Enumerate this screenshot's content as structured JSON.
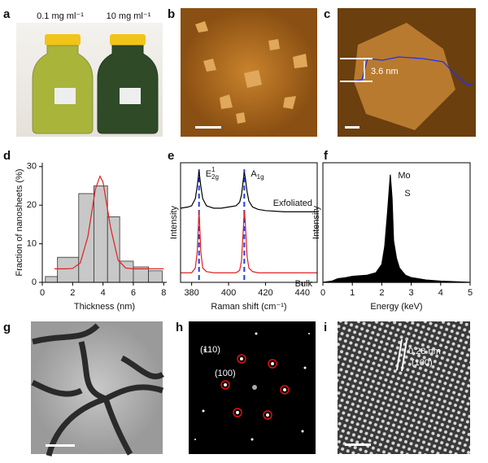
{
  "panels": [
    "a",
    "b",
    "c",
    "d",
    "e",
    "f",
    "g",
    "h",
    "i"
  ],
  "a_labels": [
    "0.1 mg ml⁻¹",
    "10 mg ml⁻¹"
  ],
  "c_label": "3.6 nm",
  "h_labels": [
    "(110)",
    "(100)"
  ],
  "i_labels": [
    "0.28 nm",
    "(100)"
  ],
  "chart_data": [
    {
      "type": "histogram",
      "xlabel": "Thickness (nm)",
      "ylabel": "Fraction of nanosheets (%)",
      "bins": [
        0.2,
        1.0,
        2.4,
        3.4,
        4.3,
        5.1,
        6.0,
        7.0,
        7.9
      ],
      "values": [
        1.5,
        6.5,
        23,
        25,
        17,
        5.5,
        4,
        3
      ],
      "color": "#c8c8c8",
      "fit": {
        "x": [
          0.8,
          1.5,
          2,
          2.5,
          3,
          3.5,
          3.8,
          4,
          4.5,
          5,
          5.5,
          6,
          7,
          8
        ],
        "values": [
          3.5,
          3.5,
          3.6,
          5.0,
          11.8,
          24.2,
          27.5,
          26.0,
          14.2,
          5.7,
          3.7,
          3.5,
          3.5,
          3.5
        ],
        "color": "#e02020"
      },
      "xlim": [
        0,
        8.2
      ],
      "xticks": [
        0,
        2,
        4,
        6,
        8
      ],
      "ylim": [
        0,
        31
      ],
      "yticks": [
        0,
        10,
        20,
        30
      ],
      "box": false
    },
    {
      "type": "line",
      "xlabel": "Raman shift (cm⁻¹)",
      "ylabel": "Intensity",
      "x": [
        374,
        378,
        380,
        382,
        383,
        384,
        385,
        386,
        388,
        392,
        396,
        400,
        404,
        406,
        407,
        408,
        408.5,
        409,
        410,
        411,
        413,
        416,
        420,
        430,
        440,
        448
      ],
      "series": [
        {
          "name": "Exfoliated",
          "color": "#000000",
          "values": [
            0.62,
            0.63,
            0.64,
            0.7,
            0.8,
            0.93,
            0.8,
            0.7,
            0.64,
            0.62,
            0.62,
            0.63,
            0.64,
            0.67,
            0.73,
            0.86,
            0.92,
            0.88,
            0.76,
            0.68,
            0.63,
            0.61,
            0.6,
            0.59,
            0.59,
            0.59
          ]
        },
        {
          "name": "Bulk",
          "color": "#e02020",
          "values": [
            0.08,
            0.08,
            0.08,
            0.12,
            0.25,
            0.6,
            0.25,
            0.12,
            0.09,
            0.08,
            0.08,
            0.08,
            0.08,
            0.1,
            0.18,
            0.45,
            0.6,
            0.52,
            0.22,
            0.12,
            0.09,
            0.08,
            0.08,
            0.08,
            0.08,
            0.08
          ]
        }
      ],
      "markers": [
        384,
        408.5
      ],
      "marker_color": "#2040e0",
      "peak_labels": [
        {
          "base": "E",
          "sub": "2g",
          "sup": "1"
        },
        {
          "base": "A",
          "sub": "1g"
        }
      ],
      "xlim": [
        374,
        448
      ],
      "xticks": [
        380,
        400,
        420,
        440
      ],
      "ylim": [
        0,
        1
      ],
      "box": true
    },
    {
      "type": "line",
      "xlabel": "Energy (keV)",
      "ylabel": "Intensity",
      "x": [
        0,
        0.3,
        0.5,
        0.8,
        1,
        1.5,
        1.8,
        2.0,
        2.1,
        2.2,
        2.29,
        2.35,
        2.4,
        2.5,
        2.6,
        2.8,
        3.0,
        3.5,
        4,
        5
      ],
      "series": [
        {
          "color": "#000000",
          "values": [
            0,
            0.01,
            0.03,
            0.04,
            0.05,
            0.06,
            0.08,
            0.15,
            0.3,
            0.6,
            0.9,
            0.7,
            0.35,
            0.2,
            0.12,
            0.06,
            0.04,
            0.02,
            0.01,
            0
          ]
        }
      ],
      "fill": true,
      "annotations": [
        "Mo",
        "S"
      ],
      "xlim": [
        0,
        5
      ],
      "xticks": [
        0,
        1,
        2,
        3,
        4,
        5
      ],
      "ylim": [
        0,
        1
      ],
      "box": true
    }
  ]
}
